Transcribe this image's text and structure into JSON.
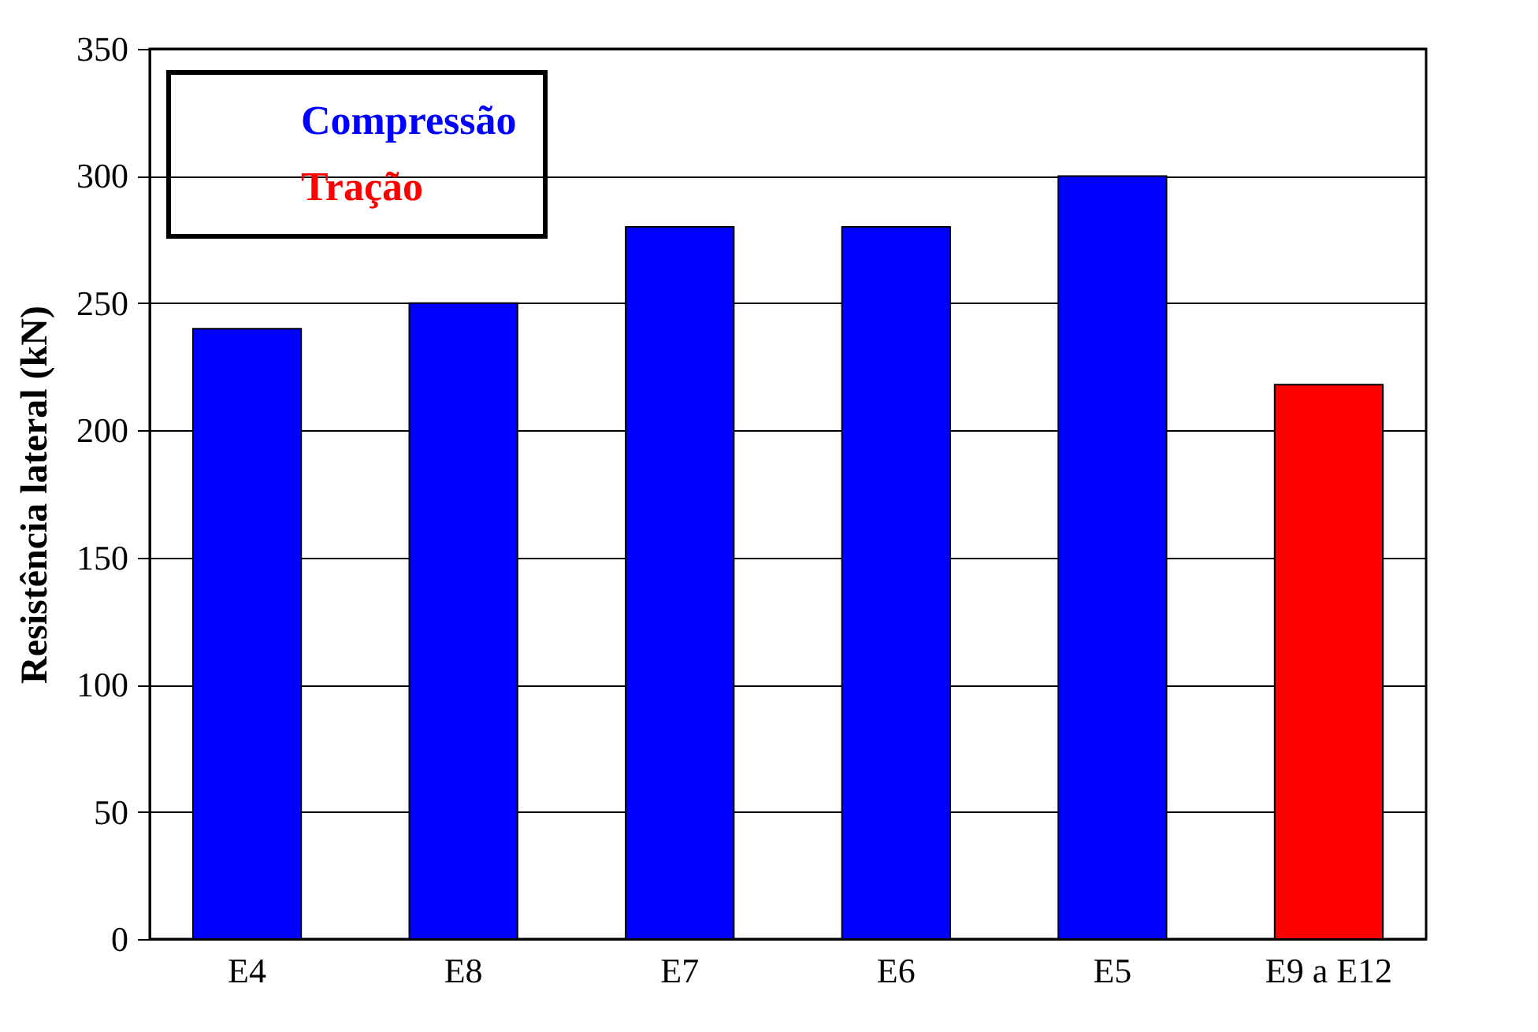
{
  "chart_data": {
    "type": "bar",
    "ylabel": "Resistência lateral (kN)",
    "categories": [
      "E4",
      "E8",
      "E7",
      "E6",
      "E5",
      "E9 a E12"
    ],
    "series": [
      {
        "name": "Compressão",
        "color": "#0000ff",
        "values": [
          240,
          250,
          280,
          280,
          300,
          null
        ]
      },
      {
        "name": "Tração",
        "color": "#ff0000",
        "values": [
          null,
          null,
          null,
          null,
          null,
          218
        ]
      }
    ],
    "ylim": [
      0,
      350
    ],
    "yticks": [
      0,
      50,
      100,
      150,
      200,
      250,
      300,
      350
    ],
    "grid": "y",
    "legend": "top left"
  }
}
